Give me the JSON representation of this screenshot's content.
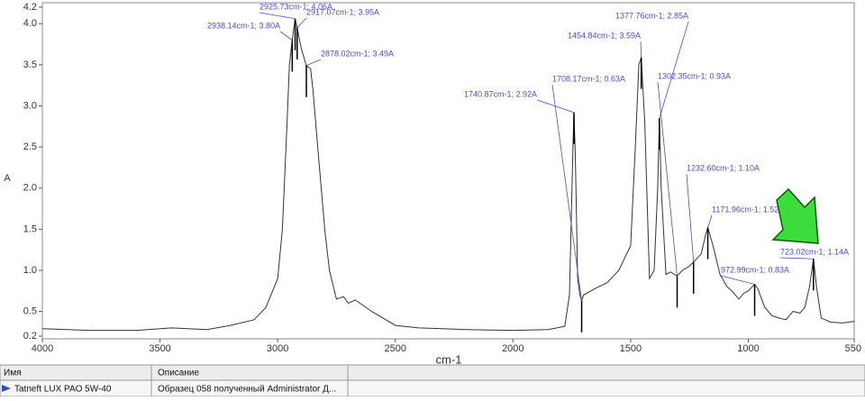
{
  "chart_data": {
    "type": "line",
    "ylabel": "A",
    "xlabel": "cm-1",
    "xlim": [
      4000,
      550
    ],
    "ylim": [
      0.2,
      4.2
    ],
    "xticks": [
      4000,
      3500,
      3000,
      2500,
      2000,
      1500,
      1000,
      550
    ],
    "yticks": [
      4.2,
      {
        "value": 4,
        "label": "4.0"
      },
      3.5,
      {
        "value": 3,
        "label": "3.0"
      },
      2.5,
      {
        "value": 2,
        "label": "2.0"
      },
      1.5,
      {
        "value": 1,
        "label": "1.0"
      },
      0.5,
      0.2
    ],
    "color": "#333333",
    "x": [
      4000,
      3800,
      3600,
      3450,
      3300,
      3200,
      3100,
      3050,
      3000,
      2980,
      2960,
      2950,
      2938.14,
      2925.73,
      2917.07,
      2900,
      2878.02,
      2860,
      2850,
      2830,
      2800,
      2780,
      2750,
      2720,
      2700,
      2670,
      2600,
      2500,
      2400,
      2200,
      2000,
      1850,
      1780,
      1760,
      1745,
      1740.87,
      1735,
      1725,
      1715,
      1708.17,
      1700,
      1650,
      1600,
      1550,
      1500,
      1480,
      1465,
      1454.84,
      1440,
      1420,
      1400,
      1385,
      1377.76,
      1370,
      1350,
      1330,
      1302.35,
      1280,
      1250,
      1232.6,
      1200,
      1180,
      1171.96,
      1150,
      1120,
      1090,
      1070,
      1040,
      1020,
      1000,
      972.99,
      960,
      930,
      900,
      870,
      840,
      810,
      780,
      760,
      740,
      723.02,
      710,
      690,
      650,
      600,
      550
    ],
    "values": [
      0.29,
      0.27,
      0.27,
      0.3,
      0.28,
      0.33,
      0.4,
      0.55,
      0.9,
      1.5,
      2.8,
      3.5,
      3.8,
      4.06,
      3.95,
      3.7,
      3.49,
      3.45,
      3.2,
      2.5,
      1.5,
      1.0,
      0.65,
      0.68,
      0.6,
      0.64,
      0.5,
      0.33,
      0.3,
      0.28,
      0.27,
      0.28,
      0.32,
      0.7,
      2.5,
      2.92,
      2.4,
      0.9,
      0.7,
      0.63,
      0.7,
      0.78,
      0.85,
      1.0,
      1.3,
      2.5,
      3.5,
      3.59,
      2.8,
      0.9,
      1.0,
      2.0,
      2.85,
      2.0,
      0.95,
      0.98,
      0.93,
      1.0,
      1.05,
      1.1,
      1.2,
      1.45,
      1.52,
      1.3,
      0.95,
      0.8,
      0.75,
      0.65,
      0.72,
      0.75,
      0.83,
      0.78,
      0.55,
      0.45,
      0.42,
      0.4,
      0.5,
      0.48,
      0.55,
      0.8,
      1.14,
      0.8,
      0.42,
      0.37,
      0.36,
      0.38
    ],
    "annotations": [
      {
        "text": "2925.73cm-1; 4.06A",
        "x": 2925.73,
        "y": 4.06
      },
      {
        "text": "2917.07cm-1; 3.95A",
        "x": 2917.07,
        "y": 3.95
      },
      {
        "text": "2938.14cm-1; 3.80A",
        "x": 2938.14,
        "y": 3.8
      },
      {
        "text": "2878.02cm-1; 3.49A",
        "x": 2878.02,
        "y": 3.49
      },
      {
        "text": "1377.76cm-1; 2.85A",
        "x": 1377.76,
        "y": 2.85
      },
      {
        "text": "1454.84cm-1; 3.59A",
        "x": 1454.84,
        "y": 3.59
      },
      {
        "text": "1302.35cm-1; 0.93A",
        "x": 1302.35,
        "y": 0.93
      },
      {
        "text": "1708.17cm-1; 0.63A",
        "x": 1708.17,
        "y": 0.63
      },
      {
        "text": "1740.87cm-1; 2.92A",
        "x": 1740.87,
        "y": 2.92
      },
      {
        "text": "1232.60cm-1; 1.10A",
        "x": 1232.6,
        "y": 1.1
      },
      {
        "text": "1171.96cm-1; 1.52A",
        "x": 1171.96,
        "y": 1.52
      },
      {
        "text": "972.99cm-1; 0.83A",
        "x": 972.99,
        "y": 0.83
      },
      {
        "text": "723.02cm-1; 1.14A",
        "x": 723.02,
        "y": 1.14
      }
    ]
  },
  "table": {
    "header": [
      "Имя",
      "Описание"
    ],
    "rows": [
      [
        "Tatneft LUX PAO 5W-40",
        "Образец 058 полученный Administrator Д..."
      ]
    ]
  }
}
